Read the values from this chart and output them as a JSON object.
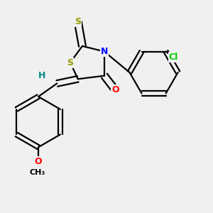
{
  "background_color": "#f0f0f0",
  "atom_colors": {
    "S": "#999900",
    "N": "#0000ff",
    "O": "#ff0000",
    "Cl": "#00cc00",
    "H": "#008888",
    "C": "#000000"
  },
  "bond_color": "#000000",
  "bond_width": 1.6
}
